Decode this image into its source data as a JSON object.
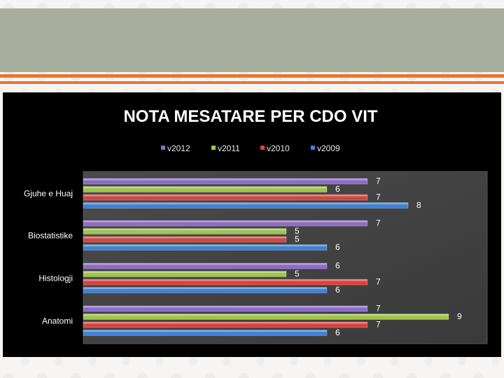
{
  "slide": {
    "accent": "#e8772e",
    "header_color": "#a8ae9d"
  },
  "chart_data": {
    "type": "bar",
    "orientation": "horizontal",
    "title": "NOTA MESATARE PER CDO VIT",
    "categories": [
      "Gjuhe e Huaj",
      "Biostatistike",
      "Histologji",
      "Anatomi"
    ],
    "series": [
      {
        "name": "v2012",
        "color": "#8c6bc8",
        "values": [
          7,
          7,
          6,
          7
        ]
      },
      {
        "name": "v2011",
        "color": "#9fc54b",
        "values": [
          6,
          5,
          5,
          9
        ]
      },
      {
        "name": "v2010",
        "color": "#d9423e",
        "values": [
          7,
          5,
          7,
          7
        ]
      },
      {
        "name": "v2009",
        "color": "#3f82d6",
        "values": [
          8,
          6,
          6,
          6
        ]
      }
    ],
    "xlim": [
      0,
      10
    ],
    "grid": false,
    "legend_position": "top",
    "data_labels": true
  }
}
